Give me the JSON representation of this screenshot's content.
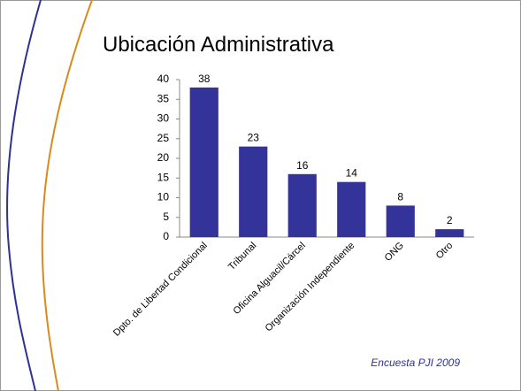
{
  "chart_data": {
    "type": "bar",
    "title": "Ubicación Administrativa",
    "categories": [
      "Dpto. de Libertad Condicional",
      "Tribunal",
      "Oficina Alguacil/Cárcel",
      "Organización Independiente",
      "ONG",
      "Otro"
    ],
    "values": [
      38,
      23,
      16,
      14,
      8,
      2
    ],
    "color": "#333399",
    "ylim": [
      0,
      40
    ],
    "yticks": [
      0,
      5,
      10,
      15,
      20,
      25,
      30,
      35,
      40
    ],
    "grid": false,
    "source": "Encuesta PJI 2009"
  }
}
